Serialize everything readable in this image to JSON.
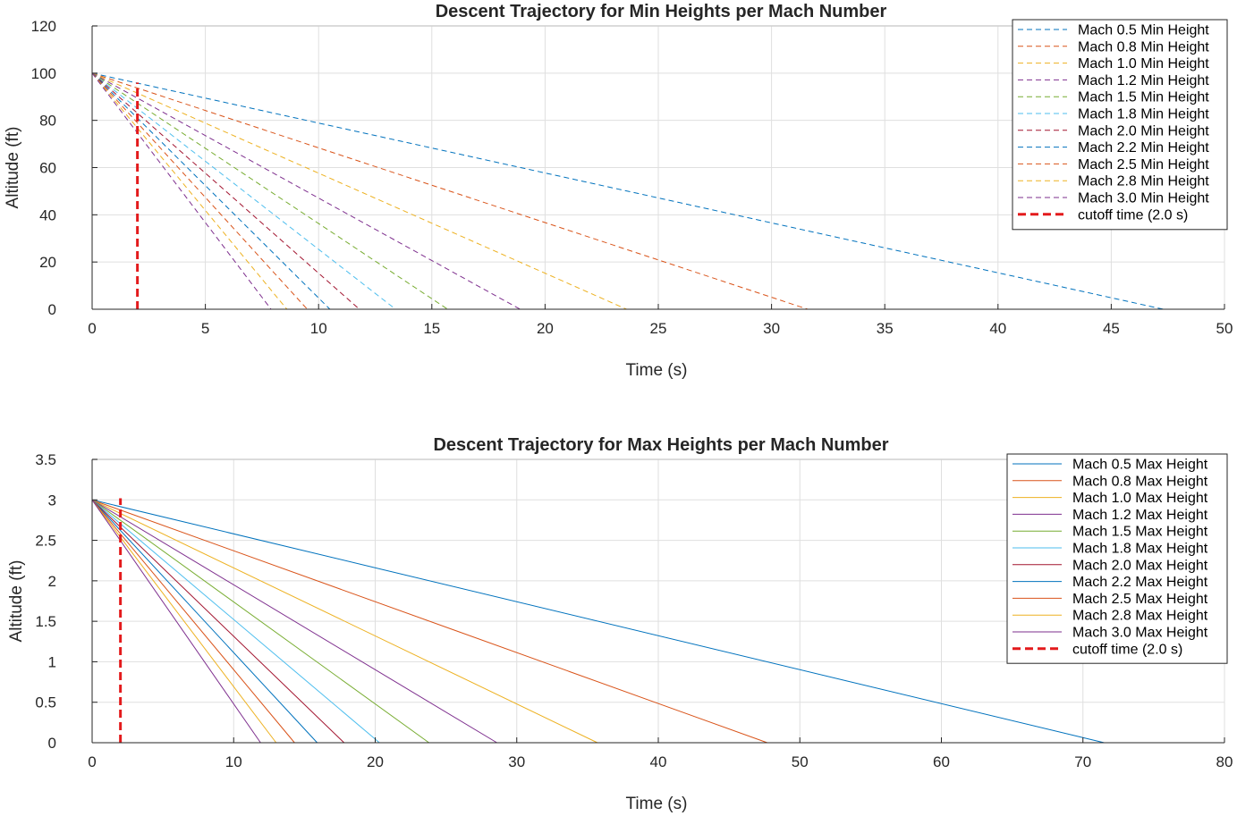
{
  "chart_data": [
    {
      "type": "line",
      "title": "Descent Trajectory for Min Heights per Mach Number",
      "xlabel": "Time (s)",
      "ylabel": "Altitude (ft)",
      "xlim": [
        0,
        50
      ],
      "ylim": [
        0,
        120
      ],
      "xticks": [
        0,
        5,
        10,
        15,
        20,
        25,
        30,
        35,
        40,
        45,
        50
      ],
      "yticks": [
        0,
        20,
        40,
        60,
        80,
        100,
        120
      ],
      "grid": true,
      "legend_location": "top-right",
      "line_style": "dashed",
      "series": [
        {
          "name": "Mach 0.5 Min Height",
          "color": "#0072BD",
          "x": [
            0,
            47.3
          ],
          "y": [
            100,
            0
          ]
        },
        {
          "name": "Mach 0.8 Min Height",
          "color": "#D95319",
          "x": [
            0,
            31.6
          ],
          "y": [
            100,
            0
          ]
        },
        {
          "name": "Mach 1.0 Min Height",
          "color": "#EDB120",
          "x": [
            0,
            23.6
          ],
          "y": [
            100,
            0
          ]
        },
        {
          "name": "Mach 1.2 Min Height",
          "color": "#7E2F8E",
          "x": [
            0,
            18.9
          ],
          "y": [
            100,
            0
          ]
        },
        {
          "name": "Mach 1.5 Min Height",
          "color": "#77AC30",
          "x": [
            0,
            15.7
          ],
          "y": [
            100,
            0
          ]
        },
        {
          "name": "Mach 1.8 Min Height",
          "color": "#4DBEEE",
          "x": [
            0,
            13.4
          ],
          "y": [
            100,
            0
          ]
        },
        {
          "name": "Mach 2.0 Min Height",
          "color": "#A2142F",
          "x": [
            0,
            11.8
          ],
          "y": [
            100,
            0
          ]
        },
        {
          "name": "Mach 2.2 Min Height",
          "color": "#0072BD",
          "x": [
            0,
            10.5
          ],
          "y": [
            100,
            0
          ]
        },
        {
          "name": "Mach 2.5 Min Height",
          "color": "#D95319",
          "x": [
            0,
            9.5
          ],
          "y": [
            100,
            0
          ]
        },
        {
          "name": "Mach 2.8 Min Height",
          "color": "#EDB120",
          "x": [
            0,
            8.6
          ],
          "y": [
            100,
            0
          ]
        },
        {
          "name": "Mach 3.0 Min Height",
          "color": "#7E2F8E",
          "x": [
            0,
            7.9
          ],
          "y": [
            100,
            0
          ]
        }
      ],
      "cutoff": {
        "name": "cutoff time (2.0 s)",
        "color": "#E31A1C",
        "x": 2.0,
        "y_range": [
          0,
          96
        ]
      }
    },
    {
      "type": "line",
      "title": "Descent Trajectory for Max Heights per Mach Number",
      "xlabel": "Time (s)",
      "ylabel": "Altitude (ft)",
      "xlim": [
        0,
        80
      ],
      "ylim": [
        0,
        3.5
      ],
      "xticks": [
        0,
        10,
        20,
        30,
        40,
        50,
        60,
        70,
        80
      ],
      "yticks": [
        0,
        0.5,
        1,
        1.5,
        2,
        2.5,
        3,
        3.5
      ],
      "grid": true,
      "legend_location": "top-right",
      "line_style": "solid",
      "series": [
        {
          "name": "Mach 0.5 Max Height",
          "color": "#0072BD",
          "x": [
            0,
            71.5
          ],
          "y": [
            3,
            0
          ]
        },
        {
          "name": "Mach 0.8 Max Height",
          "color": "#D95319",
          "x": [
            0,
            47.7
          ],
          "y": [
            3,
            0
          ]
        },
        {
          "name": "Mach 1.0 Max Height",
          "color": "#EDB120",
          "x": [
            0,
            35.7
          ],
          "y": [
            3,
            0
          ]
        },
        {
          "name": "Mach 1.2 Max Height",
          "color": "#7E2F8E",
          "x": [
            0,
            28.6
          ],
          "y": [
            3,
            0
          ]
        },
        {
          "name": "Mach 1.5 Max Height",
          "color": "#77AC30",
          "x": [
            0,
            23.8
          ],
          "y": [
            3,
            0
          ]
        },
        {
          "name": "Mach 1.8 Max Height",
          "color": "#4DBEEE",
          "x": [
            0,
            20.3
          ],
          "y": [
            3,
            0
          ]
        },
        {
          "name": "Mach 2.0 Max Height",
          "color": "#A2142F",
          "x": [
            0,
            17.8
          ],
          "y": [
            3,
            0
          ]
        },
        {
          "name": "Mach 2.2 Max Height",
          "color": "#0072BD",
          "x": [
            0,
            15.9
          ],
          "y": [
            3,
            0
          ]
        },
        {
          "name": "Mach 2.5 Max Height",
          "color": "#D95319",
          "x": [
            0,
            14.3
          ],
          "y": [
            3,
            0
          ]
        },
        {
          "name": "Mach 2.8 Max Height",
          "color": "#EDB120",
          "x": [
            0,
            13.0
          ],
          "y": [
            3,
            0
          ]
        },
        {
          "name": "Mach 3.0 Max Height",
          "color": "#7E2F8E",
          "x": [
            0,
            11.9
          ],
          "y": [
            3,
            0
          ]
        }
      ],
      "cutoff": {
        "name": "cutoff time (2.0 s)",
        "color": "#E31A1C",
        "x": 2.0,
        "y_range": [
          0,
          3.02
        ]
      }
    }
  ]
}
